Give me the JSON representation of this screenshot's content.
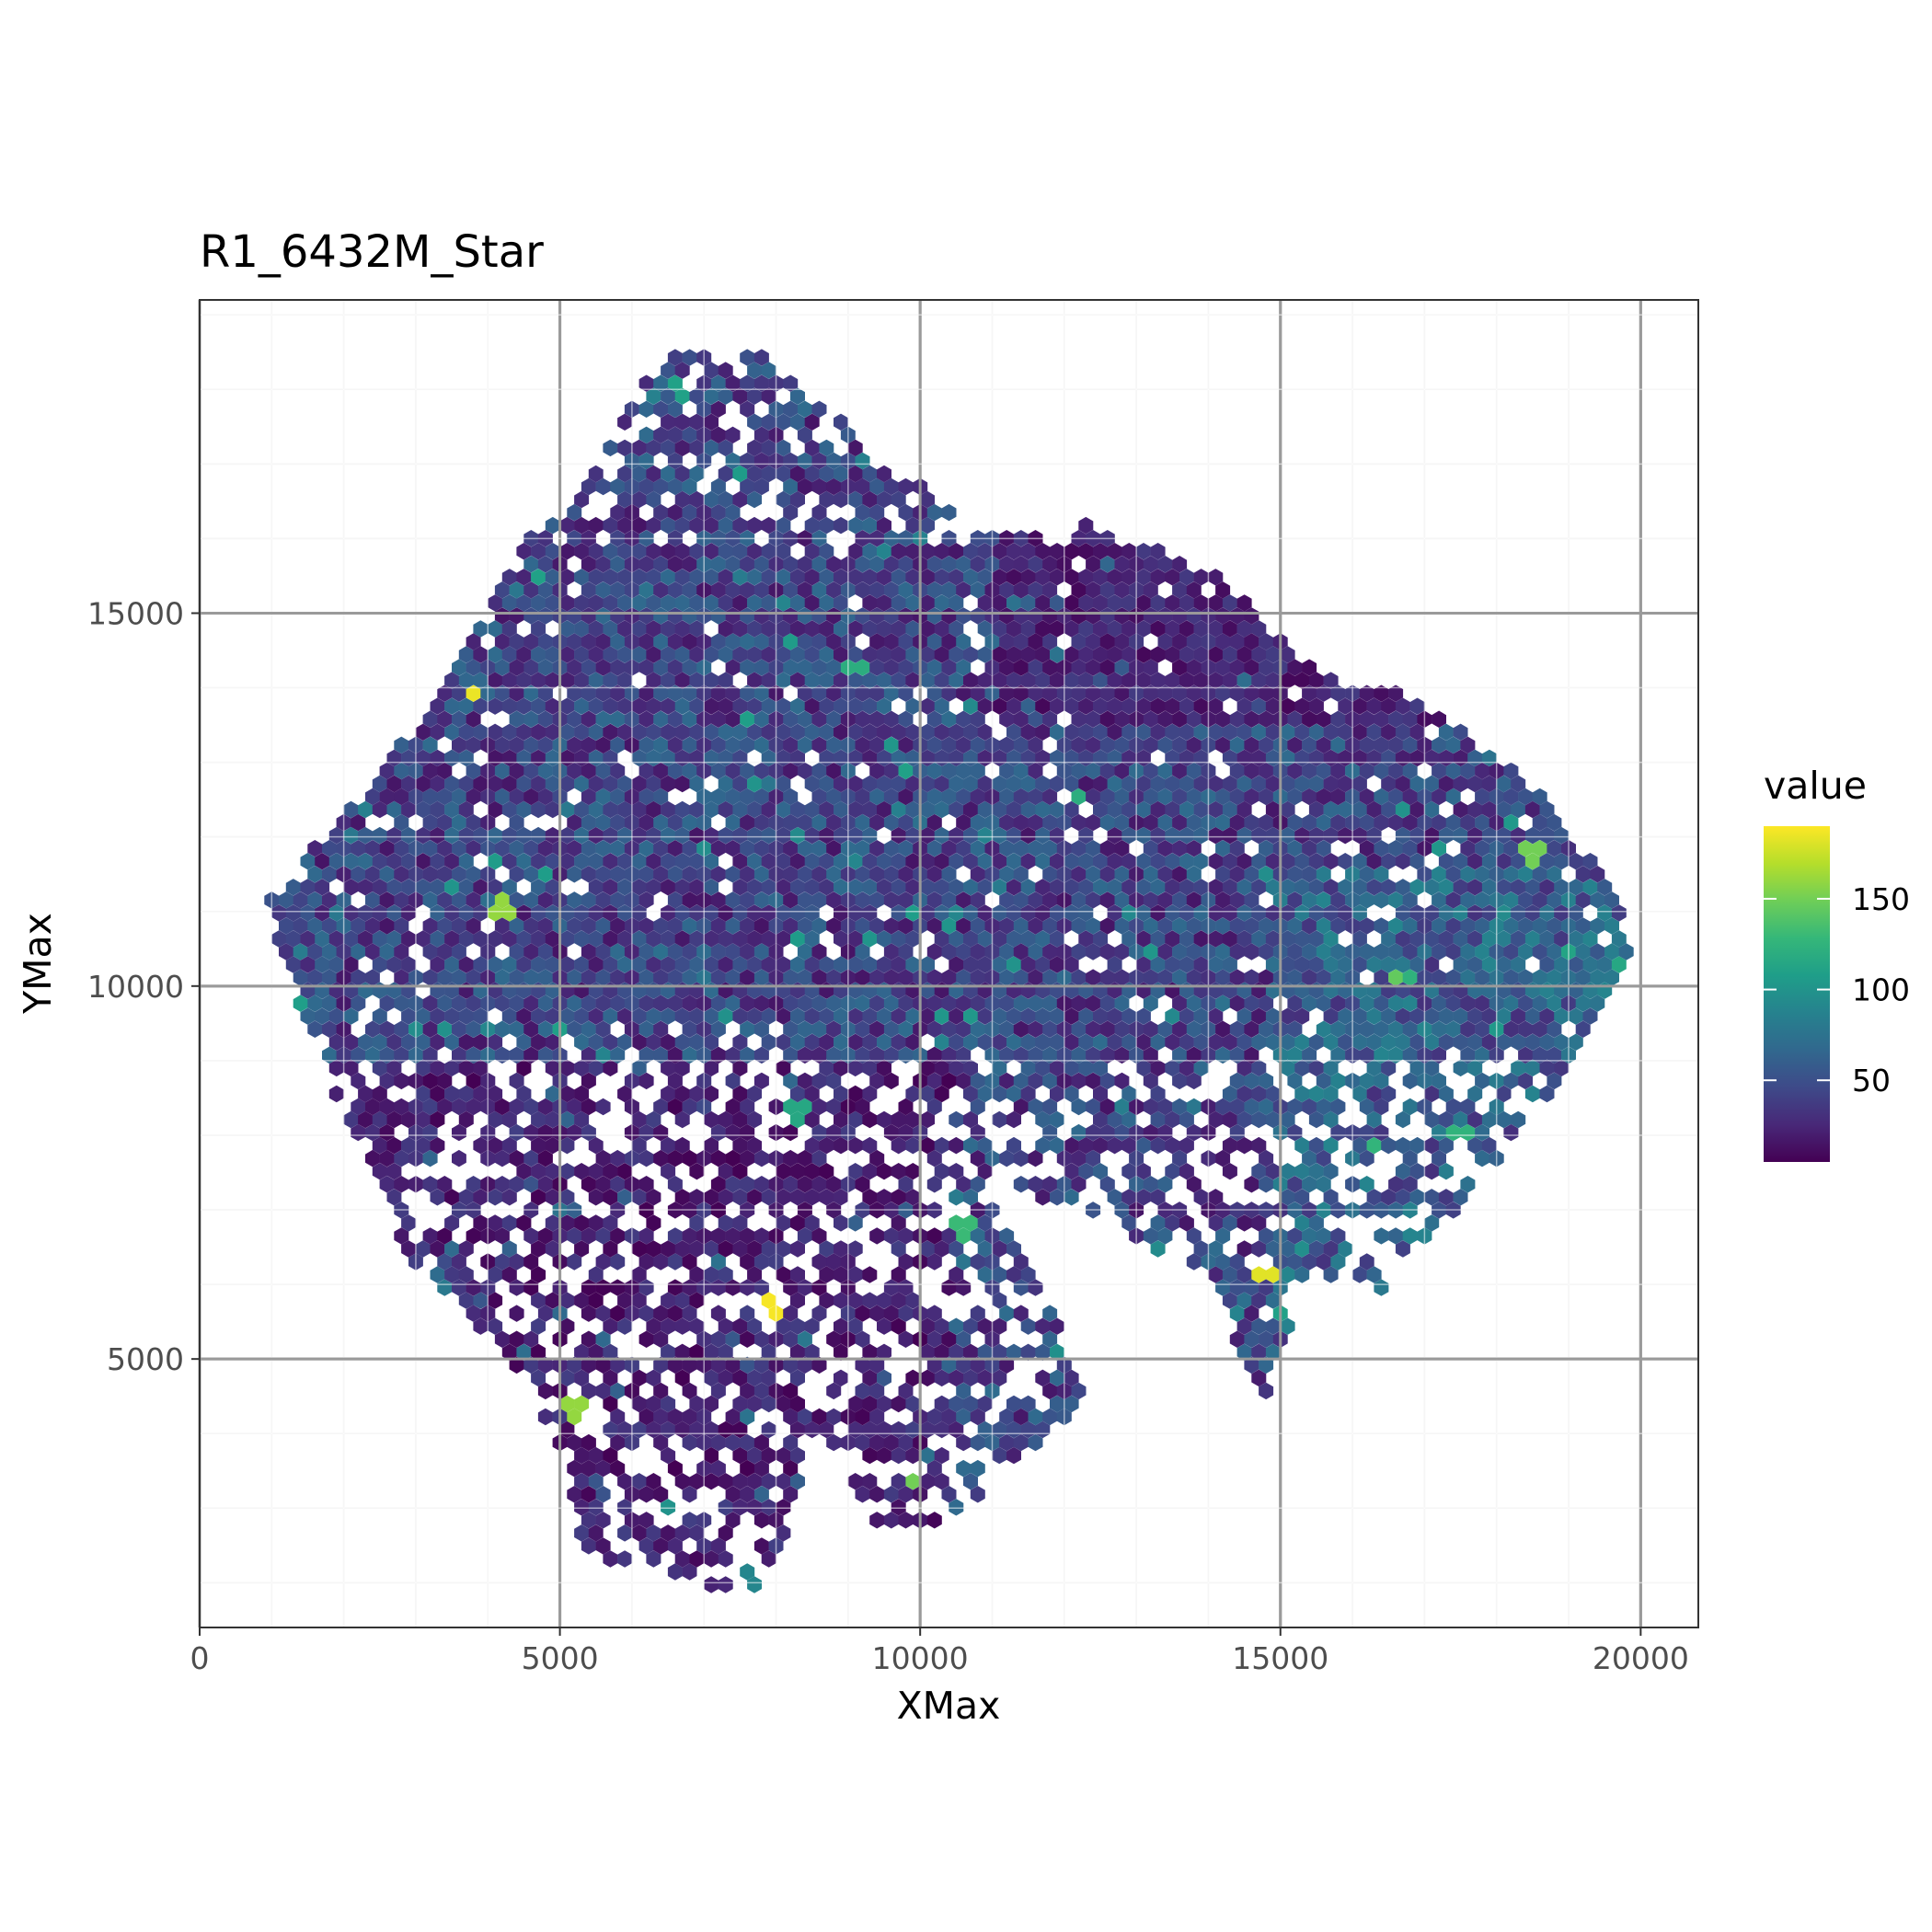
{
  "chart_data": {
    "type": "heatmap",
    "subtype": "hexbin",
    "title": "R1_6432M_Star",
    "xlabel": "XMax",
    "ylabel": "YMax",
    "xlim": [
      0,
      20800
    ],
    "ylim": [
      19200,
      1400
    ],
    "y_reversed": true,
    "x_ticks": [
      0,
      5000,
      10000,
      15000,
      20000
    ],
    "x_tick_labels": [
      "0",
      "5000",
      "10000",
      "15000",
      "20000"
    ],
    "y_ticks": [
      5000,
      10000,
      15000
    ],
    "y_tick_labels": [
      "5000",
      "10000",
      "15000"
    ],
    "grid": true,
    "theme": "bw",
    "legend": {
      "title": "value",
      "placement": "right",
      "colormap": "viridis",
      "range": [
        5,
        190
      ],
      "ticks": [
        50,
        100,
        150
      ],
      "tick_labels": [
        "50",
        "100",
        "150"
      ],
      "colors": [
        "#440154",
        "#482878",
        "#3e4a89",
        "#31688e",
        "#26828e",
        "#1f9e89",
        "#35b779",
        "#6ece58",
        "#b5de2b",
        "#fde725"
      ]
    },
    "region": {
      "description_points": [
        [
          5300,
          2400
        ],
        [
          7800,
          1800
        ],
        [
          8100,
          2600
        ],
        [
          8600,
          4000
        ],
        [
          9300,
          2800
        ],
        [
          10200,
          2700
        ],
        [
          11000,
          3200
        ],
        [
          12300,
          4400
        ],
        [
          11800,
          5800
        ],
        [
          10800,
          7500
        ],
        [
          12500,
          6700
        ],
        [
          14000,
          6200
        ],
        [
          14800,
          4300
        ],
        [
          15300,
          6100
        ],
        [
          16400,
          5900
        ],
        [
          17800,
          7400
        ],
        [
          19200,
          9100
        ],
        [
          19900,
          10400
        ],
        [
          19700,
          11200
        ],
        [
          18400,
          12800
        ],
        [
          17000,
          13800
        ],
        [
          15200,
          14400
        ],
        [
          14200,
          15500
        ],
        [
          12400,
          16200
        ],
        [
          10700,
          16100
        ],
        [
          9700,
          17000
        ],
        [
          8200,
          18100
        ],
        [
          7700,
          18600
        ],
        [
          6500,
          18600
        ],
        [
          6000,
          17800
        ],
        [
          5300,
          16700
        ],
        [
          4300,
          15800
        ],
        [
          3900,
          15000
        ],
        [
          3400,
          14000
        ],
        [
          2300,
          12600
        ],
        [
          900,
          11100
        ],
        [
          1500,
          9400
        ],
        [
          2400,
          7400
        ],
        [
          2900,
          6400
        ],
        [
          4500,
          4800
        ],
        [
          5100,
          3500
        ]
      ]
    },
    "hex_bins": [
      {
        "x": 3800,
        "y": 13900,
        "value": 185
      },
      {
        "x": 7900,
        "y": 5700,
        "value": 188
      },
      {
        "x": 14800,
        "y": 6100,
        "value": 182
      },
      {
        "x": 5200,
        "y": 4300,
        "value": 160
      },
      {
        "x": 4200,
        "y": 11100,
        "value": 160
      },
      {
        "x": 9900,
        "y": 3400,
        "value": 150
      },
      {
        "x": 16600,
        "y": 10100,
        "value": 145
      },
      {
        "x": 18500,
        "y": 11800,
        "value": 150
      },
      {
        "x": 10600,
        "y": 6700,
        "value": 130
      },
      {
        "x": 11600,
        "y": 4600,
        "value": 120
      },
      {
        "x": 12200,
        "y": 12500,
        "value": 120
      },
      {
        "x": 8300,
        "y": 8300,
        "value": 115
      },
      {
        "x": 9100,
        "y": 14300,
        "value": 120
      },
      {
        "x": 4700,
        "y": 15500,
        "value": 110
      },
      {
        "x": 6700,
        "y": 18000,
        "value": 110
      },
      {
        "x": 10900,
        "y": 7200,
        "value": 125
      },
      {
        "x": 15100,
        "y": 5600,
        "value": 110
      },
      {
        "x": 17500,
        "y": 8000,
        "value": 125
      },
      {
        "x": 19800,
        "y": 10300,
        "value": 115
      },
      {
        "x": 7600,
        "y": 2100,
        "value": 90
      },
      {
        "x": 6600,
        "y": 3000,
        "value": 100
      }
    ]
  }
}
